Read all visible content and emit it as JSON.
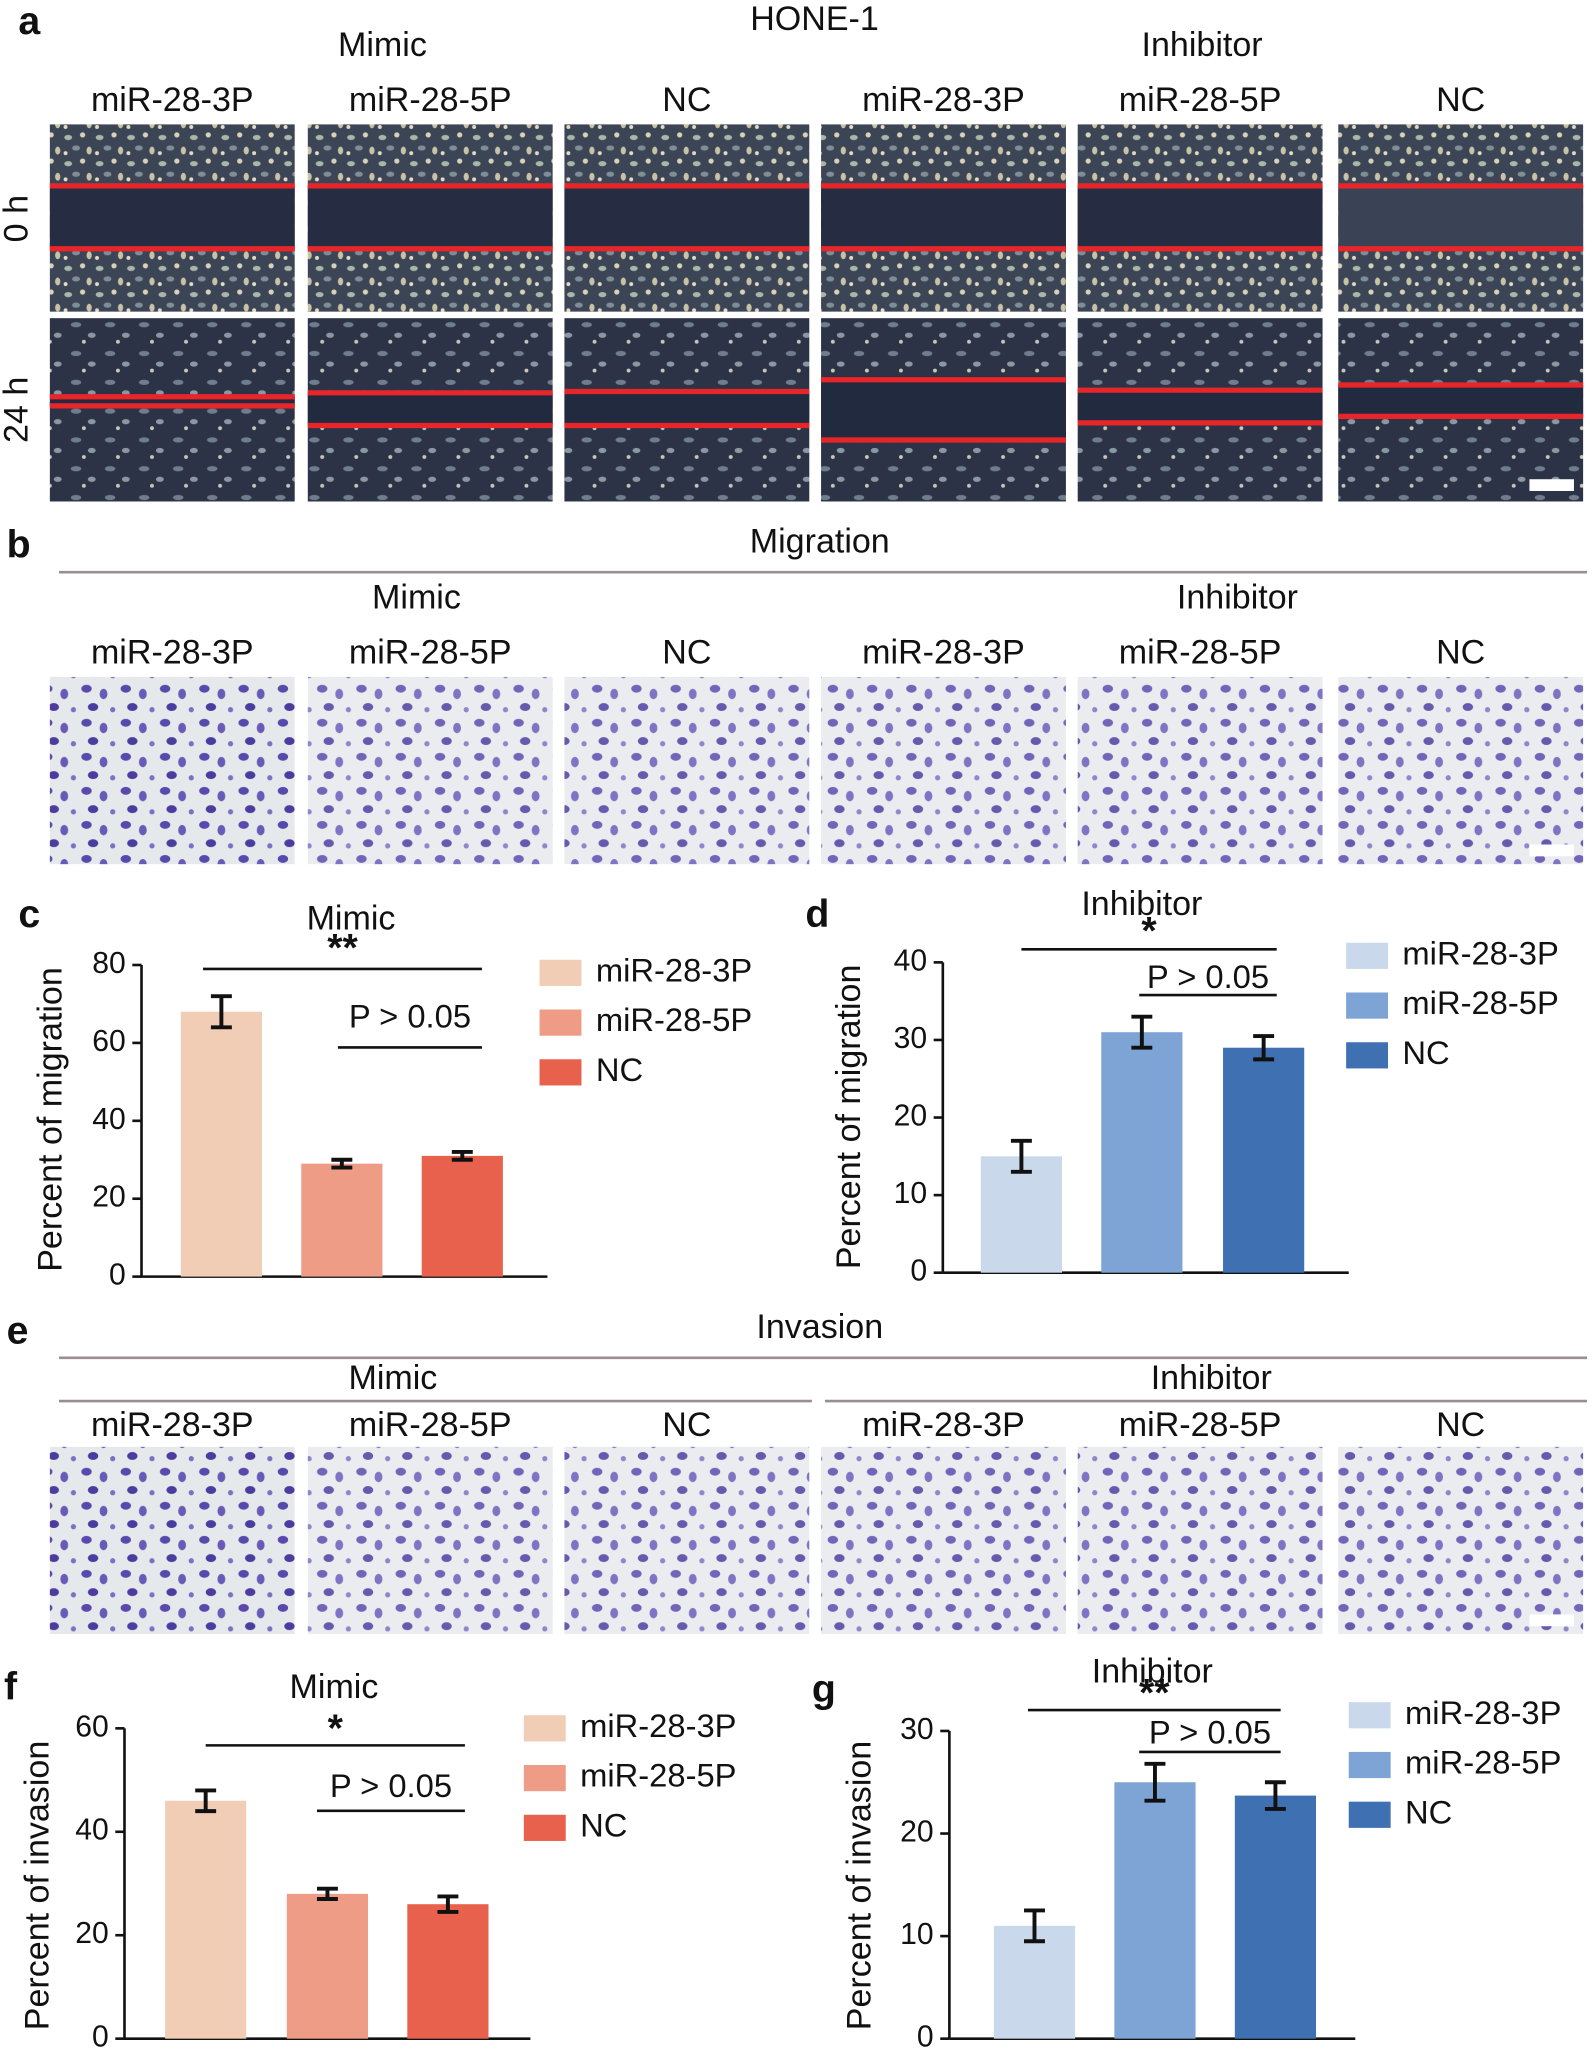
{
  "panel_a": {
    "letter": "a",
    "title": "HONE-1",
    "groups": [
      "Mimic",
      "Inhibitor"
    ],
    "columns": [
      "miR-28-3P",
      "miR-28-5P",
      "NC",
      "miR-28-3P",
      "miR-28-5P",
      "NC"
    ],
    "rows": [
      "0 h",
      "24 h"
    ]
  },
  "panel_b": {
    "letter": "b",
    "title": "Migration",
    "groups": [
      "Mimic",
      "Inhibitor"
    ],
    "columns": [
      "miR-28-3P",
      "miR-28-5P",
      "NC",
      "miR-28-3P",
      "miR-28-5P",
      "NC"
    ]
  },
  "panel_e": {
    "letter": "e",
    "title": "Invasion",
    "groups": [
      "Mimic",
      "Inhibitor"
    ],
    "columns": [
      "miR-28-3P",
      "miR-28-5P",
      "NC",
      "miR-28-3P",
      "miR-28-5P",
      "NC"
    ]
  },
  "chart_data": [
    {
      "type": "bar",
      "label": "c",
      "title": "Mimic",
      "ylabel": "Percent of migration",
      "categories": [
        "miR-28-3P",
        "miR-28-5P",
        "NC"
      ],
      "values": [
        68,
        29,
        31
      ],
      "errors": [
        4,
        1,
        1
      ],
      "colors": [
        "#f2cdb5",
        "#ee9c86",
        "#e8614c"
      ],
      "ylim": [
        0,
        80
      ],
      "yticks": [
        0,
        20,
        40,
        60,
        80
      ],
      "annotations": [
        "**",
        "P > 0.05"
      ]
    },
    {
      "type": "bar",
      "label": "d",
      "title": "Inhibitor",
      "ylabel": "Percent of migration",
      "categories": [
        "miR-28-3P",
        "miR-28-5P",
        "NC"
      ],
      "values": [
        15,
        31,
        29
      ],
      "errors": [
        2,
        2,
        1.5
      ],
      "colors": [
        "#c9d9eb",
        "#7da4d4",
        "#3f70b1"
      ],
      "ylim": [
        0,
        40
      ],
      "yticks": [
        0,
        10,
        20,
        30,
        40
      ],
      "annotations": [
        "*",
        "P > 0.05"
      ]
    },
    {
      "type": "bar",
      "label": "f",
      "title": "Mimic",
      "ylabel": "Percent of invasion",
      "categories": [
        "miR-28-3P",
        "miR-28-5P",
        "NC"
      ],
      "values": [
        46,
        28,
        26
      ],
      "errors": [
        2,
        1,
        1.5
      ],
      "colors": [
        "#f2cdb5",
        "#ee9c86",
        "#e8614c"
      ],
      "ylim": [
        0,
        60
      ],
      "yticks": [
        0,
        20,
        40,
        60
      ],
      "annotations": [
        "*",
        "P > 0.05"
      ]
    },
    {
      "type": "bar",
      "label": "g",
      "title": "Inhibitor",
      "ylabel": "Percent of invasion",
      "categories": [
        "miR-28-3P",
        "miR-28-5P",
        "NC"
      ],
      "values": [
        11,
        25,
        23.7
      ],
      "errors": [
        1.5,
        1.8,
        1.3
      ],
      "colors": [
        "#c9d9eb",
        "#7da4d4",
        "#3f70b1"
      ],
      "ylim": [
        0,
        30
      ],
      "yticks": [
        0,
        10,
        20,
        30
      ],
      "annotations": [
        "**",
        "P > 0.05"
      ]
    }
  ]
}
